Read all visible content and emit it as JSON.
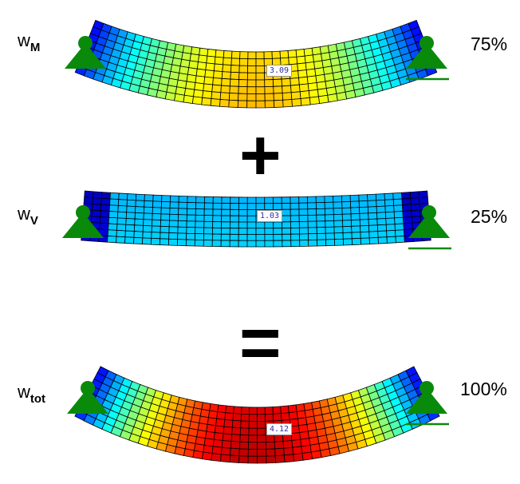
{
  "colors": {
    "support": "#0a8a0a",
    "mesh": "#000000",
    "value_text": "#3030a0"
  },
  "colormap": "jet",
  "beams": [
    {
      "id": "moment",
      "label_main": "w",
      "label_sub": "M",
      "percent": "75%",
      "max_value": "3.09",
      "level": 0.68,
      "profile": "smooth"
    },
    {
      "id": "shear",
      "label_main": "w",
      "label_sub": "V",
      "percent": "25%",
      "max_value": "1.03",
      "level": 0.32,
      "profile": "step"
    },
    {
      "id": "total",
      "label_main": "w",
      "label_sub": "tot",
      "percent": "100%",
      "max_value": "4.12",
      "level": 0.93,
      "profile": "smooth"
    }
  ],
  "operators": {
    "plus": "+",
    "equals": "="
  }
}
